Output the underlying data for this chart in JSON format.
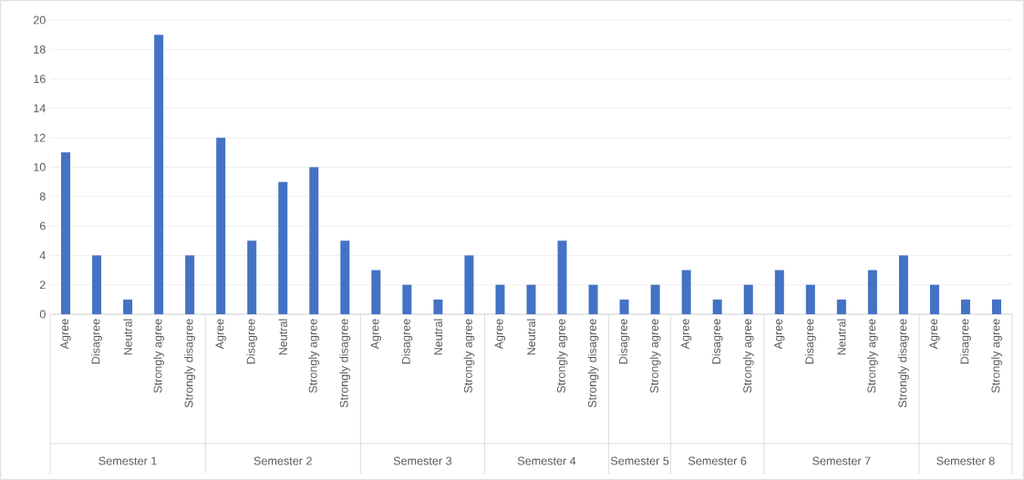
{
  "chart_data": {
    "type": "bar",
    "color": "#4472c4",
    "ylim": [
      0,
      20
    ],
    "yticks": [
      0,
      2,
      4,
      6,
      8,
      10,
      12,
      14,
      16,
      18,
      20
    ],
    "grid": "y",
    "categories": [
      "Agree",
      "Disagree",
      "Neutral",
      "Strongly agree",
      "Strongly disagree",
      "Agree",
      "Disagree",
      "Neutral",
      "Strongly agree",
      "Strongly disagree",
      "Agree",
      "Disagree",
      "Neutral",
      "Strongly agree",
      "Agree",
      "Neutral",
      "Strongly agree",
      "Strongly disagree",
      "Disagree",
      "Strongly agree",
      "Agree",
      "Disagree",
      "Strongly agree",
      "Agree",
      "Disagree",
      "Neutral",
      "Strongly agree",
      "Strongly disagree",
      "Agree",
      "Disagree",
      "Strongly agree"
    ],
    "values": [
      11,
      4,
      1,
      19,
      4,
      12,
      5,
      9,
      10,
      5,
      3,
      2,
      1,
      4,
      2,
      2,
      5,
      2,
      1,
      2,
      3,
      1,
      2,
      3,
      2,
      1,
      3,
      4,
      2,
      1,
      1
    ],
    "annotations": [
      "Semester 1",
      "Semester 2",
      "Semester 3",
      "Semester 4",
      "Semester 5",
      "Semester 6",
      "Semester 7",
      "Semester 8"
    ]
  }
}
